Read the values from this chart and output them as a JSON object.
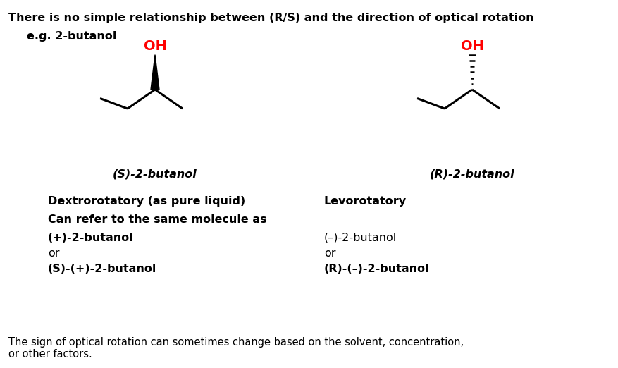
{
  "title_line1": "There is no simple relationship between (R/S) and the direction of optical rotation",
  "title_line2": "e.g. 2-butanol",
  "bg_color": "#ffffff",
  "oh_color": "#ff0000",
  "black": "#000000",
  "left_label": "(S)-2-butanol",
  "right_label": "(R)-2-butanol",
  "left_desc1": "Dextrorotatory (as pure liquid)",
  "left_desc2": "Can refer to the same molecule as",
  "left_desc3": "(+)-2-butanol",
  "left_desc4": "or",
  "left_desc5": "(S)-(+)-2-butanol",
  "right_desc1": "Levorotatory",
  "right_desc2": "(–)-2-butanol",
  "right_desc3": "or",
  "right_desc4": "(R)-(–)-2-butanol",
  "footer": "The sign of optical rotation can sometimes change based on the solvent, concentration,\nor other factors."
}
